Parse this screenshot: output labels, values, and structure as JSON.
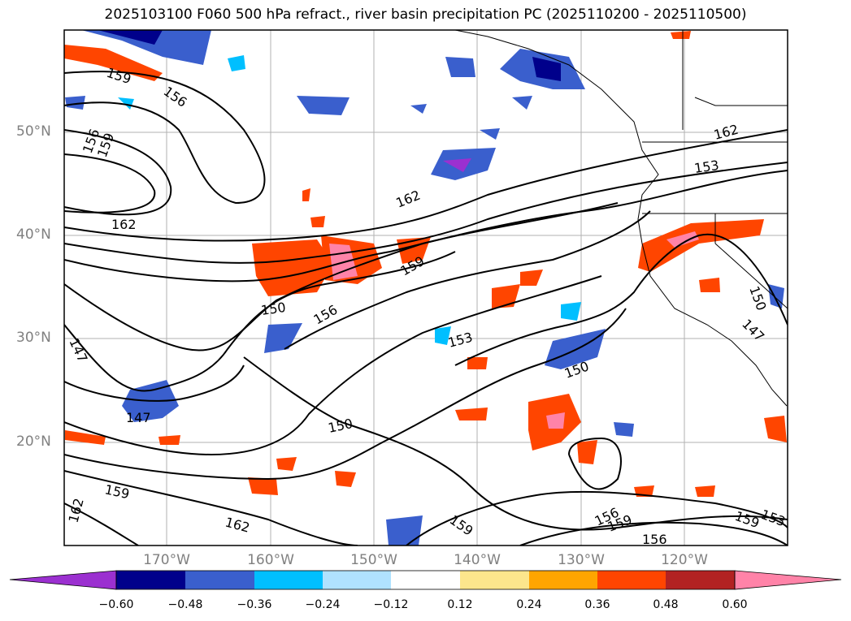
{
  "title": "2025103100 F060 500 hPa refract., river basin precipitation PC (2025110200 - 2025110500)",
  "lat_labels": [
    "50°N",
    "40°N",
    "30°N",
    "20°N"
  ],
  "lon_labels": [
    "170°W",
    "160°W",
    "150°W",
    "140°W",
    "130°W",
    "120°W"
  ],
  "contour_labels": [
    "159",
    "156",
    "156",
    "159",
    "162",
    "162",
    "150",
    "156",
    "159",
    "153",
    "150",
    "150",
    "147",
    "147",
    "150",
    "147",
    "162",
    "159",
    "162",
    "159",
    "156",
    "159",
    "156",
    "153",
    "159",
    "153"
  ],
  "colorbar": {
    "ticks": [
      "−0.60",
      "−0.48",
      "−0.36",
      "−0.24",
      "−0.12",
      "0.12",
      "0.24",
      "0.36",
      "0.48",
      "0.60"
    ],
    "colors": [
      "#9b30d0",
      "#00008b",
      "#3a5fcd",
      "#00bfff",
      "#b0e2ff",
      "#ffffff",
      "#fce68c",
      "#ffa500",
      "#ff4500",
      "#b22222",
      "#ff83a8",
      "#ff83a8"
    ]
  },
  "map_colors": {
    "contour": "#000000",
    "grid": "#a0a0a0",
    "land_border": "#000000"
  }
}
